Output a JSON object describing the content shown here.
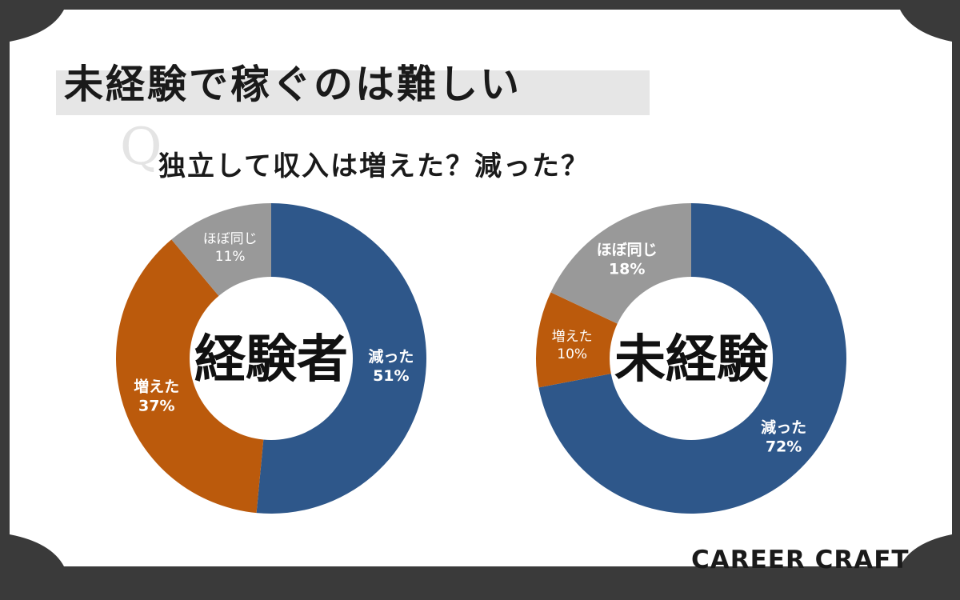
{
  "title": "未経験で稼ぐのは難しい",
  "question_mark": "Q",
  "question": "独立して収入は増えた？減った？",
  "brand": "CAREER CRAFT",
  "colors": {
    "decreased": "#2e578a",
    "increased": "#bb5a0c",
    "same": "#999999",
    "background": "#3a3a3a",
    "card": "#ffffff"
  },
  "chart_data": [
    {
      "type": "pie",
      "center_label": "経験者",
      "slices": [
        {
          "label": "減った",
          "value": 51,
          "value_label": "51%",
          "color": "#2e578a"
        },
        {
          "label": "増えた",
          "value": 37,
          "value_label": "37%",
          "color": "#bb5a0c"
        },
        {
          "label": "ほぼ同じ",
          "value": 11,
          "value_label": "11%",
          "color": "#999999"
        }
      ]
    },
    {
      "type": "pie",
      "center_label": "未経験",
      "slices": [
        {
          "label": "減った",
          "value": 72,
          "value_label": "72%",
          "color": "#2e578a"
        },
        {
          "label": "増えた",
          "value": 10,
          "value_label": "10%",
          "color": "#bb5a0c"
        },
        {
          "label": "ほぼ同じ",
          "value": 18,
          "value_label": "18%",
          "color": "#999999"
        }
      ]
    }
  ]
}
